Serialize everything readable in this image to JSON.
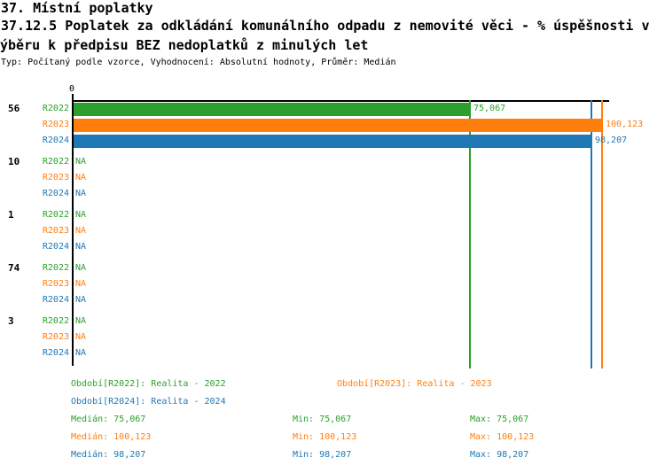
{
  "header": {
    "title_line1": "37. Místní poplatky",
    "title_line2": "37.12.5 Poplatek za odkládání komunálního odpadu z nemovité věci - % úspěšnosti v",
    "title_line3": "ýběru k předpisu BEZ nedoplatků z minulých let",
    "meta": "Typ: Počítaný podle vzorce, Vyhodnocení: Absolutní hodnoty, Průměr: Medián"
  },
  "chart_data": {
    "type": "bar",
    "orientation": "horizontal",
    "axis": {
      "position": "top",
      "zero_tick_label": "0"
    },
    "series": [
      {
        "name": "R2022",
        "color": "#2ca02c",
        "legend_label": "Období[R2022]: Realita - 2022"
      },
      {
        "name": "R2023",
        "color": "#ff7f0e",
        "legend_label": "Období[R2023]: Realita - 2023"
      },
      {
        "name": "R2024",
        "color": "#1f77b4",
        "legend_label": "Období[R2024]: Realita - 2024"
      }
    ],
    "groups": [
      {
        "label": "56",
        "values": [
          75.067,
          100.123,
          98.207
        ],
        "value_labels": [
          "75,067",
          "100,123",
          "98,207"
        ]
      },
      {
        "label": "10",
        "values": [
          null,
          null,
          null
        ],
        "value_labels": [
          "NA",
          "NA",
          "NA"
        ]
      },
      {
        "label": "1",
        "values": [
          null,
          null,
          null
        ],
        "value_labels": [
          "NA",
          "NA",
          "NA"
        ]
      },
      {
        "label": "74",
        "values": [
          null,
          null,
          null
        ],
        "value_labels": [
          "NA",
          "NA",
          "NA"
        ]
      },
      {
        "label": "3",
        "values": [
          null,
          null,
          null
        ],
        "value_labels": [
          "NA",
          "NA",
          "NA"
        ]
      }
    ],
    "reference_lines": [
      {
        "series": "R2022",
        "value": 75.067
      },
      {
        "series": "R2024",
        "value": 98.207
      },
      {
        "series": "R2023",
        "value": 100.123
      }
    ],
    "stats": [
      {
        "series": "R2022",
        "median": "Medián: 75,067",
        "min": "Min: 75,067",
        "max": "Max: 75,067"
      },
      {
        "series": "R2023",
        "median": "Medián: 100,123",
        "min": "Min: 100,123",
        "max": "Max: 100,123"
      },
      {
        "series": "R2024",
        "median": "Medián: 98,207",
        "min": "Min: 98,207",
        "max": "Max: 98,207"
      }
    ]
  }
}
